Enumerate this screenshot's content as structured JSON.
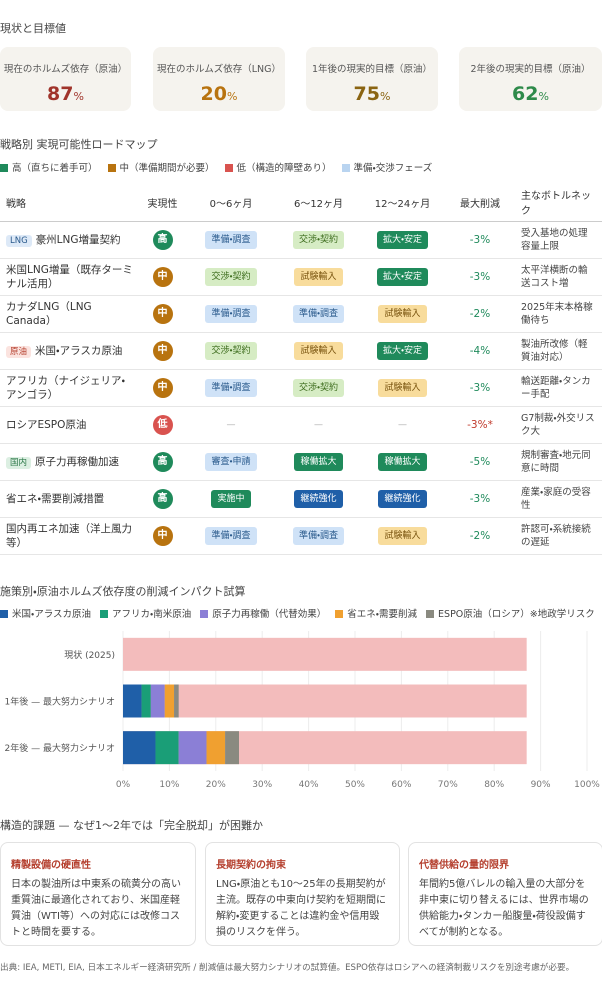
{
  "status": {
    "title": "現状と目標値",
    "cards": [
      {
        "label": "現在のホルムズ依存（原油）",
        "value": 87,
        "unit": "%",
        "color": "#a0342b"
      },
      {
        "label": "現在のホルムズ依存（LNG）",
        "value": 20,
        "unit": "%",
        "color": "#b8730f"
      },
      {
        "label": "1年後の現実的目標（原油）",
        "value": 75,
        "unit": "%",
        "color": "#8a6412"
      },
      {
        "label": "2年後の現実的目標（原油）",
        "value": 62,
        "unit": "%",
        "color": "#2e8a4a"
      }
    ]
  },
  "roadmap": {
    "title": "戦略別 実現可能性ロードマップ",
    "legend": [
      {
        "name": "高（直ちに着手可）",
        "color": "#1f8a5b"
      },
      {
        "name": "中（準備期間が必要）",
        "color": "#b8730f"
      },
      {
        "name": "低（構造的障壁あり）",
        "color": "#d9534f"
      },
      {
        "name": "準備・交渉フェーズ",
        "color": "#b9d4f0"
      }
    ],
    "headers": [
      "戦略",
      "実現性",
      "0〜6ヶ月",
      "6〜12ヶ月",
      "12〜24ヶ月",
      "最大削減",
      "主なボトルネック"
    ],
    "rows": [
      {
        "tag": {
          "label": "LNG",
          "bg": "#dde9f7",
          "fg": "#2a5a8c"
        },
        "strategy": "豪州LNG増量契約",
        "feasibility": {
          "label": "高",
          "color": "#1f8a5b"
        },
        "phases": [
          {
            "label": "準備・調査",
            "bg": "#cfe2f7",
            "fg": "#2a5a8c"
          },
          {
            "label": "交渉・契約",
            "bg": "#d6ecc4",
            "fg": "#3f6e1f"
          },
          {
            "label": "拡大・安定",
            "bg": "#1f8a5b",
            "fg": "#ffffff"
          }
        ],
        "reduction": {
          "label": "-3%",
          "color": "#1f8a5b"
        },
        "bottleneck": "受入基地の処理容量上限"
      },
      {
        "strategy": "米国LNG増量（既存ターミナル活用）",
        "feasibility": {
          "label": "中",
          "color": "#b8730f"
        },
        "phases": [
          {
            "label": "交渉・契約",
            "bg": "#d6ecc4",
            "fg": "#3f6e1f"
          },
          {
            "label": "試験輸入",
            "bg": "#f8dc9c",
            "fg": "#7a5510"
          },
          {
            "label": "拡大・安定",
            "bg": "#1f8a5b",
            "fg": "#ffffff"
          }
        ],
        "reduction": {
          "label": "-3%",
          "color": "#1f8a5b"
        },
        "bottleneck": "太平洋横断の輸送コスト増"
      },
      {
        "strategy": "カナダLNG（LNG Canada）",
        "feasibility": {
          "label": "中",
          "color": "#b8730f"
        },
        "phases": [
          {
            "label": "準備・調査",
            "bg": "#cfe2f7",
            "fg": "#2a5a8c"
          },
          {
            "label": "準備・調査",
            "bg": "#cfe2f7",
            "fg": "#2a5a8c"
          },
          {
            "label": "試験輸入",
            "bg": "#f8dc9c",
            "fg": "#7a5510"
          }
        ],
        "reduction": {
          "label": "-2%",
          "color": "#1f8a5b"
        },
        "bottleneck": "2025年末本格稼働待ち"
      },
      {
        "tag": {
          "label": "原油",
          "bg": "#fbe3df",
          "fg": "#b5402f"
        },
        "strategy": "米国・アラスカ原油",
        "feasibility": {
          "label": "中",
          "color": "#b8730f"
        },
        "phases": [
          {
            "label": "交渉・契約",
            "bg": "#d6ecc4",
            "fg": "#3f6e1f"
          },
          {
            "label": "試験輸入",
            "bg": "#f8dc9c",
            "fg": "#7a5510"
          },
          {
            "label": "拡大・安定",
            "bg": "#1f8a5b",
            "fg": "#ffffff"
          }
        ],
        "reduction": {
          "label": "-4%",
          "color": "#1f8a5b"
        },
        "bottleneck": "製油所改修（軽質油対応）"
      },
      {
        "strategy": "アフリカ（ナイジェリア・アンゴラ）",
        "feasibility": {
          "label": "中",
          "color": "#b8730f"
        },
        "phases": [
          {
            "label": "準備・調査",
            "bg": "#cfe2f7",
            "fg": "#2a5a8c"
          },
          {
            "label": "交渉・契約",
            "bg": "#d6ecc4",
            "fg": "#3f6e1f"
          },
          {
            "label": "試験輸入",
            "bg": "#f8dc9c",
            "fg": "#7a5510"
          }
        ],
        "reduction": {
          "label": "-3%",
          "color": "#1f8a5b"
        },
        "bottleneck": "輸送距離・タンカー手配"
      },
      {
        "strategy": "ロシアESPO原油",
        "feasibility": {
          "label": "低",
          "color": "#d9534f"
        },
        "phases": [
          {
            "label": "—",
            "bg": "transparent",
            "fg": "#aaaaaa"
          },
          {
            "label": "—",
            "bg": "transparent",
            "fg": "#aaaaaa"
          },
          {
            "label": "—",
            "bg": "transparent",
            "fg": "#aaaaaa"
          }
        ],
        "reduction": {
          "label": "-3%*",
          "color": "#c0392b"
        },
        "bottleneck": "G7制裁・外交リスク大"
      },
      {
        "tag": {
          "label": "国内",
          "bg": "#dcefe2",
          "fg": "#2e7a4a"
        },
        "strategy": "原子力再稼働加速",
        "feasibility": {
          "label": "高",
          "color": "#1f8a5b"
        },
        "phases": [
          {
            "label": "審査・申請",
            "bg": "#cfe2f7",
            "fg": "#2a5a8c"
          },
          {
            "label": "稼働拡大",
            "bg": "#1f8a5b",
            "fg": "#ffffff"
          },
          {
            "label": "稼働拡大",
            "bg": "#1f8a5b",
            "fg": "#ffffff"
          }
        ],
        "reduction": {
          "label": "-5%",
          "color": "#1f8a5b"
        },
        "bottleneck": "規制審査・地元同意に時間"
      },
      {
        "strategy": "省エネ・需要削減措置",
        "feasibility": {
          "label": "高",
          "color": "#1f8a5b"
        },
        "phases": [
          {
            "label": "実施中",
            "bg": "#1f8a5b",
            "fg": "#ffffff"
          },
          {
            "label": "継続強化",
            "bg": "#1f5fa8",
            "fg": "#ffffff"
          },
          {
            "label": "継続強化",
            "bg": "#1f5fa8",
            "fg": "#ffffff"
          }
        ],
        "reduction": {
          "label": "-3%",
          "color": "#1f8a5b"
        },
        "bottleneck": "産業・家庭の受容性"
      },
      {
        "strategy": "国内再エネ加速（洋上風力等）",
        "feasibility": {
          "label": "中",
          "color": "#b8730f"
        },
        "phases": [
          {
            "label": "準備・調査",
            "bg": "#cfe2f7",
            "fg": "#2a5a8c"
          },
          {
            "label": "準備・調査",
            "bg": "#cfe2f7",
            "fg": "#2a5a8c"
          },
          {
            "label": "試験輸入",
            "bg": "#f8dc9c",
            "fg": "#7a5510"
          }
        ],
        "reduction": {
          "label": "-2%",
          "color": "#1f8a5b"
        },
        "bottleneck": "許認可・系統接続の遅延"
      }
    ]
  },
  "chart_data": {
    "type": "stacked-bar-horizontal",
    "title": "施策別・原油ホルムズ依存度の削減インパクト試算",
    "categories": [
      "現状 (2025)",
      "1年後 — 最大努力シナリオ",
      "2年後 — 最大努力シナリオ"
    ],
    "background": {
      "color": "#f3bcbc",
      "values": [
        87,
        87,
        87
      ]
    },
    "series": [
      {
        "name": "米国・アラスカ原油",
        "color": "#1f5fa8",
        "values": [
          0,
          4,
          7
        ]
      },
      {
        "name": "アフリカ・南米原油",
        "color": "#1a9e77",
        "values": [
          0,
          2,
          5
        ]
      },
      {
        "name": "原子力再稼働（代替効果）",
        "color": "#8b7fd6",
        "values": [
          0,
          3,
          6
        ]
      },
      {
        "name": "省エネ・需要削減",
        "color": "#f0a030",
        "values": [
          0,
          2,
          4
        ]
      },
      {
        "name": "ESPO原油（ロシア）※地政学リスク",
        "color": "#8a8a80",
        "values": [
          0,
          1,
          3
        ]
      }
    ],
    "xlim": [
      0,
      100
    ],
    "xticks": [
      {
        "value": 0,
        "label": "0%"
      },
      {
        "value": 10,
        "label": "10%"
      },
      {
        "value": 20,
        "label": "20%"
      },
      {
        "value": 30,
        "label": "30%"
      },
      {
        "value": 40,
        "label": "40%"
      },
      {
        "value": 50,
        "label": "50%"
      },
      {
        "value": 60,
        "label": "60%"
      },
      {
        "value": 70,
        "label": "70%"
      },
      {
        "value": 80,
        "label": "80%"
      },
      {
        "value": 90,
        "label": "90%"
      },
      {
        "value": 100,
        "label": "100%"
      }
    ],
    "grid": true
  },
  "challenges": {
    "title": "構造的課題 — なぜ1〜2年では「完全脱却」が困難か",
    "cards": [
      {
        "title": "精製設備の硬直性",
        "body": "日本の製油所は中東系の硫黄分の高い重質油に最適化されており、米国産軽質油（WTI等）への対応には改修コストと時間を要する。"
      },
      {
        "title": "長期契約の拘束",
        "body": "LNG・原油とも10〜25年の長期契約が主流。既存の中東向け契約を短期間に解約・変更することは違約金や信用毀損のリスクを伴う。"
      },
      {
        "title": "代替供給の量的限界",
        "body": "年間約5億バレルの輸入量の大部分を非中東に切り替えるには、世界市場の供給能力・タンカー船腹量・荷役設備すべてが制約となる。"
      }
    ]
  },
  "footer": "出典: IEA, METI, EIA, 日本エネルギー経済研究所 / 削減値は最大努力シナリオの試算値。ESPO依存はロシアへの経済制裁リスクを別途考慮が必要。"
}
